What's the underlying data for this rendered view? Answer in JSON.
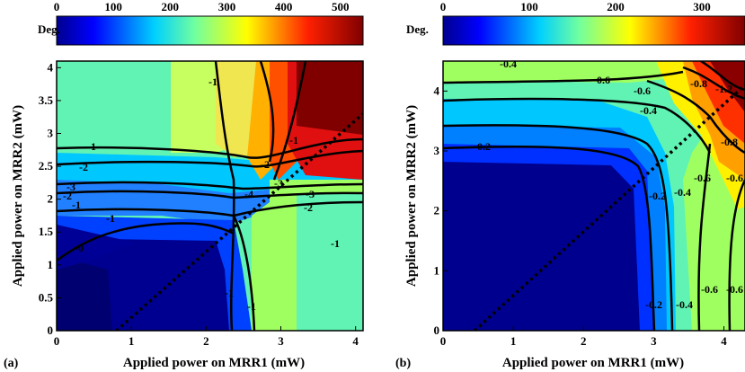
{
  "figure": {
    "panels": [
      {
        "id": "a",
        "label": "(a)",
        "colorbar_label": "Deg."
      },
      {
        "id": "b",
        "label": "(b)",
        "colorbar_label": "Deg."
      }
    ]
  },
  "chart_data": [
    {
      "type": "heatmap",
      "subtype": "filled-contour",
      "panel_label": "(a)",
      "xlabel": "Applied power on MRR1 (mW)",
      "ylabel": "Applied power on MRR2 (mW)",
      "xlim": [
        0,
        4.1
      ],
      "ylim": [
        0,
        4.1
      ],
      "xticks": [
        0,
        1,
        2,
        3,
        4
      ],
      "yticks": [
        0,
        0.5,
        1,
        1.5,
        2,
        2.5,
        3,
        3.5,
        4
      ],
      "ytick_labels": [
        "0",
        "0.5",
        "1",
        "1.5",
        "2",
        "2.5",
        "3",
        "3.5",
        "4"
      ],
      "colorbar": {
        "label": "Deg.",
        "range": [
          0,
          540
        ],
        "ticks": [
          0,
          100,
          200,
          300,
          400,
          500
        ],
        "colormap": "jet"
      },
      "contour_labels": [
        "-1",
        "-1",
        "-1",
        "-1",
        "-2",
        "-2",
        "-2",
        "-3",
        "-3",
        "-3",
        "-4",
        "-1",
        "-2",
        "-1",
        "-0",
        "-1",
        "-1"
      ],
      "diagonal_dotted_line": {
        "from": [
          0.8,
          0
        ],
        "to": [
          4.1,
          3.3
        ]
      }
    },
    {
      "type": "heatmap",
      "subtype": "filled-contour",
      "panel_label": "(b)",
      "xlabel": "Applied power on MRR1 (mW)",
      "ylabel": "Applied power on MRR2 (mW)",
      "xlim": [
        0,
        4.3
      ],
      "ylim": [
        0,
        4.5
      ],
      "xticks": [
        0,
        1,
        2,
        3,
        4
      ],
      "yticks": [
        0,
        1,
        2,
        3,
        4
      ],
      "ytick_labels": [
        "0",
        "1",
        "2",
        "3",
        "4"
      ],
      "colorbar": {
        "label": "Deg.",
        "range": [
          0,
          350
        ],
        "ticks": [
          0,
          100,
          200,
          300
        ],
        "colormap": "jet"
      },
      "contour_labels": [
        "-0.4",
        "-0.6",
        "-0.6",
        "-0.8",
        "-1.2",
        "-0.4",
        "-0.2",
        "-0.8",
        "-0.6",
        "-0.6",
        "-0.2",
        "-0.4",
        "-0.2",
        "-0.4",
        "-0.6",
        "-0.6"
      ],
      "diagonal_dotted_line": {
        "from": [
          0.45,
          0
        ],
        "to": [
          4.3,
          4.1
        ]
      }
    }
  ]
}
